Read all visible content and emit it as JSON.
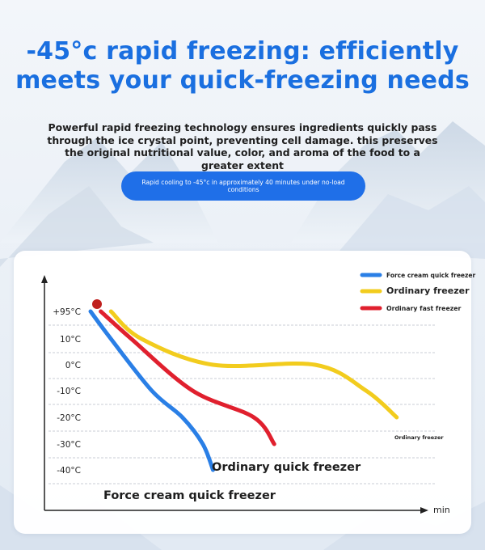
{
  "headline": {
    "line1": "-45°c rapid freezing: efficiently",
    "line2": "meets your quick-freezing needs"
  },
  "subtext": "Powerful rapid freezing technology ensures ingredients quickly pass through the ice crystal point, preventing cell damage. this preserves the original nutritional value, color, and aroma of the food to a greater extent",
  "pill": {
    "text": "Rapid cooling to -45°c in approximately 40 minutes under no-load conditions"
  },
  "colors": {
    "title": "#1a6fe0",
    "pill": "#1f6fe8",
    "blue_series": "#2a7fe6",
    "yellow_series": "#f2cc1e",
    "red_series": "#e0202e",
    "start_dot": "#c0201e"
  },
  "chart_data": {
    "type": "line",
    "xlabel": "min",
    "ylabel": "",
    "y_ticks": [
      "+95°C",
      "10°C",
      "0°C",
      "-10°C",
      "-20°C",
      "-30°C",
      "-40°C"
    ],
    "grid": "horizontal dashed",
    "legend_position": "top-right",
    "series": [
      {
        "name": "Force cream quick freezer",
        "color": "#2a7fe6",
        "label": "Force cream quick freezer",
        "points": [
          [
            0,
            95
          ],
          [
            2,
            10
          ],
          [
            6,
            -10
          ],
          [
            9,
            -20
          ],
          [
            11,
            -30
          ],
          [
            12,
            -40
          ]
        ]
      },
      {
        "name": "Ordinary freezer",
        "color": "#f2cc1e",
        "label": "Ordinary freezer",
        "points": [
          [
            2,
            95
          ],
          [
            5,
            10
          ],
          [
            12,
            0
          ],
          [
            22,
            0
          ],
          [
            27,
            -10
          ],
          [
            30,
            -20
          ]
        ]
      },
      {
        "name": "Ordinary fast freezer",
        "color": "#e0202e",
        "label": "Ordinary quick freezer",
        "points": [
          [
            1,
            95
          ],
          [
            4,
            10
          ],
          [
            10,
            -10
          ],
          [
            16,
            -20
          ],
          [
            18,
            -30
          ]
        ]
      }
    ]
  }
}
